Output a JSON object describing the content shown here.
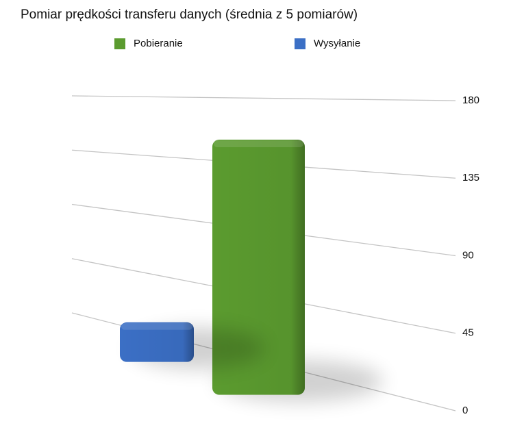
{
  "chart_data": {
    "type": "bar",
    "title": "Pomiar prędkości transferu danych (średnia z 5 pomiarów)",
    "categories": [
      null
    ],
    "series": [
      {
        "name": "Pobieranie",
        "color": "#5b9b2f",
        "values": [
          175
        ]
      },
      {
        "name": "Wysyłanie",
        "color": "#3b6fc5",
        "values": [
          30
        ]
      }
    ],
    "ylim": [
      0,
      180
    ],
    "yticks": [
      0,
      45,
      90,
      135,
      180
    ],
    "grid": true
  }
}
